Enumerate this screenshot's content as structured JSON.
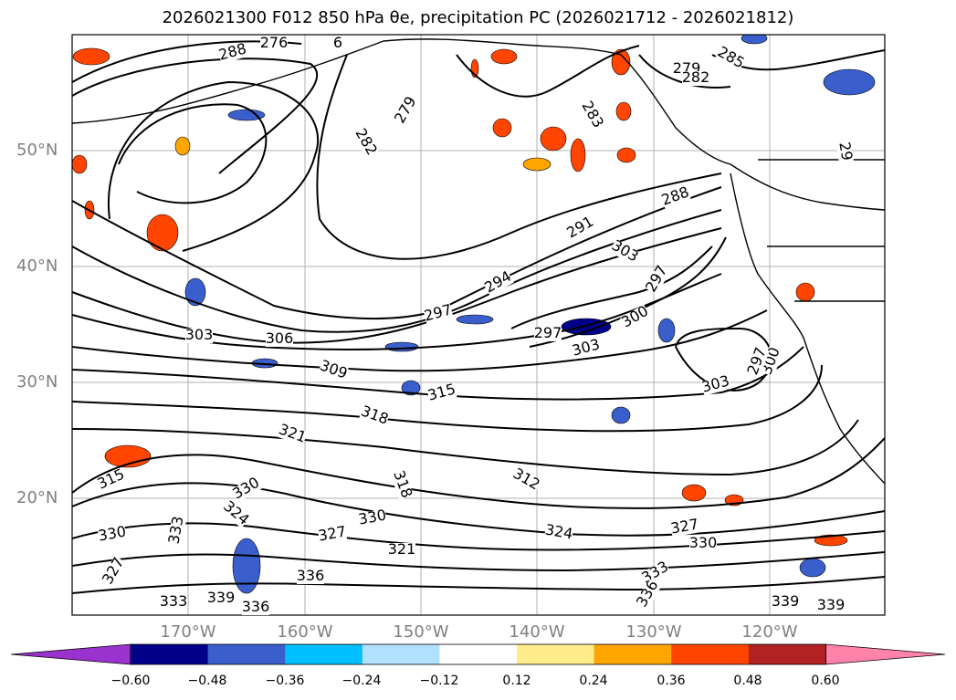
{
  "title": "2026021300 F012 850 hPa θe, precipitation PC (2026021712 - 2026021812)",
  "lat_labels": [
    "50°N",
    "40°N",
    "30°N",
    "20°N"
  ],
  "lon_labels": [
    "170°W",
    "160°W",
    "150°W",
    "140°W",
    "130°W",
    "120°W"
  ],
  "contour_labels": [
    "288",
    "276",
    "6",
    "279",
    "282",
    "283",
    "285",
    "279",
    "282",
    "291",
    "288",
    "303",
    "294",
    "297",
    "297",
    "297",
    "300",
    "303",
    "300",
    "303",
    "303",
    "306",
    "309",
    "315",
    "318",
    "321",
    "315",
    "312",
    "318",
    "324",
    "330",
    "333",
    "330",
    "327",
    "327",
    "324",
    "321",
    "330",
    "333",
    "336",
    "339",
    "336",
    "327",
    "330",
    "333",
    "336",
    "339",
    "339",
    "29",
    "297"
  ],
  "colorbar": {
    "tick_labels": [
      "−0.60",
      "−0.48",
      "−0.36",
      "−0.24",
      "−0.12",
      "0.12",
      "0.24",
      "0.36",
      "0.48",
      "0.60"
    ],
    "colors": [
      "#9a32cd",
      "#00008b",
      "#3a5fcd",
      "#00bfff",
      "#b0e2ff",
      "#ffffff",
      "#ffec8b",
      "#ffa500",
      "#ff4500",
      "#b22222",
      "#ff82ab"
    ]
  }
}
